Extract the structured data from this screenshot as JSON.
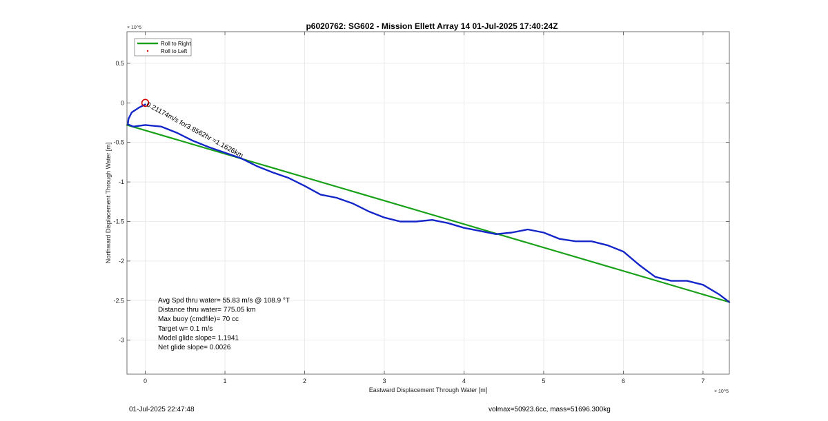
{
  "footer": {
    "timestamp": "01-Jul-2025 22:47:48",
    "vol_mass": "volmax=50923.6cc, mass=51696.300kg"
  },
  "chart_data": {
    "type": "line",
    "title": "p6020762: SG602 - Mission Ellett Array 14 01-Jul-2025 17:40:24Z",
    "xlabel": "Eastward Displacement Through Water [m]",
    "ylabel": "Northward Displacement Through Water [m]",
    "x_exponent": "× 10^5",
    "y_exponent": "× 10^5",
    "xlim": [
      -0.23,
      7.33
    ],
    "ylim": [
      -3.43,
      0.9
    ],
    "xticks": [
      0,
      1,
      2,
      3,
      4,
      5,
      6,
      7
    ],
    "xtick_labels": [
      "0",
      "1",
      "2",
      "3",
      "4",
      "5",
      "6",
      "7"
    ],
    "yticks": [
      0.5,
      0,
      -0.5,
      -1,
      -1.5,
      -2,
      -2.5,
      -3
    ],
    "ytick_labels": [
      "0.5",
      "0",
      "-0.5",
      "-1",
      "-1.5",
      "-2",
      "-2.5",
      "-3"
    ],
    "grid": true,
    "legend_position": "top-left",
    "legend": [
      "Roll to Right",
      "Roll to Left"
    ],
    "series": [
      {
        "name": "Roll to Right",
        "color": "#1aa11a",
        "x": [
          -0.23,
          7.33
        ],
        "y": [
          -0.28,
          -2.52
        ]
      },
      {
        "name": "Roll to Left",
        "color": "#d40000",
        "marker": "dot",
        "x": [],
        "y": []
      },
      {
        "color": "#1426c8",
        "x": [
          0.0,
          -0.08,
          -0.17,
          -0.21,
          -0.22,
          -0.15,
          0.0,
          0.2,
          0.4,
          0.6,
          0.8,
          1.0,
          1.2,
          1.4,
          1.6,
          1.8,
          2.0,
          2.2,
          2.4,
          2.6,
          2.8,
          3.0,
          3.2,
          3.4,
          3.6,
          3.8,
          4.0,
          4.2,
          4.4,
          4.6,
          4.8,
          5.0,
          5.2,
          5.4,
          5.6,
          5.8,
          6.0,
          6.2,
          6.4,
          6.6,
          6.8,
          7.0,
          7.2,
          7.33
        ],
        "y": [
          -0.02,
          -0.06,
          -0.12,
          -0.2,
          -0.27,
          -0.3,
          -0.28,
          -0.3,
          -0.38,
          -0.48,
          -0.56,
          -0.63,
          -0.7,
          -0.8,
          -0.88,
          -0.95,
          -1.05,
          -1.16,
          -1.2,
          -1.27,
          -1.37,
          -1.45,
          -1.5,
          -1.5,
          -1.48,
          -1.52,
          -1.58,
          -1.62,
          -1.66,
          -1.64,
          -1.6,
          -1.64,
          -1.72,
          -1.75,
          -1.75,
          -1.8,
          -1.88,
          -2.05,
          -2.2,
          -2.25,
          -2.25,
          -2.3,
          -2.42,
          -2.52
        ]
      }
    ],
    "start_marker": {
      "x": 0.0,
      "y": 0.0,
      "color": "#d40000"
    },
    "segment_label": {
      "x": 0.0,
      "y": -0.02,
      "text": "0.21174m/s for3.8562hr =1.1626km"
    },
    "stats": [
      "Avg Spd thru water= 55.83 m/s @ 108.9 °T",
      "Distance thru water= 775.05 km",
      "Max buoy (cmdfile)= 70 cc",
      "Target w= 0.1 m/s",
      "Model glide slope= 1.1941",
      "Net glide slope= 0.0026"
    ]
  }
}
